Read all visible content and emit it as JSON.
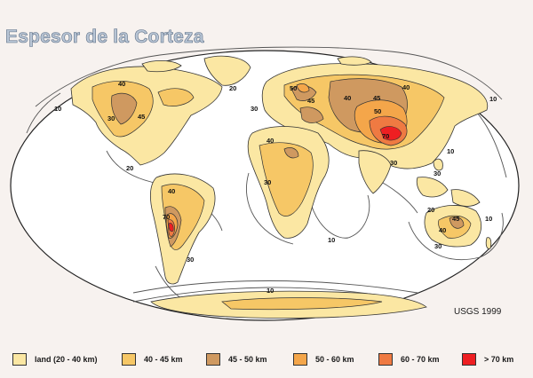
{
  "title": "Espesor de la Corteza",
  "credit": "USGS 1999",
  "legend": [
    {
      "label": "land (20 - 40 km)",
      "color": "#fbe7a3"
    },
    {
      "label": "40 - 45 km",
      "color": "#f6c766"
    },
    {
      "label": "45 - 50 km",
      "color": "#cf9960"
    },
    {
      "label": "50 - 60 km",
      "color": "#f4a64a"
    },
    {
      "label": "60 - 70 km",
      "color": "#ef7a42"
    },
    {
      "label": "> 70 km",
      "color": "#ee1f22"
    }
  ],
  "contour_labels": [
    "40",
    "30",
    "45",
    "10",
    "20",
    "30",
    "50",
    "45",
    "40",
    "45",
    "50",
    "70",
    "40",
    "30",
    "40",
    "30",
    "10",
    "30",
    "20",
    "40",
    "45",
    "10",
    "30",
    "10",
    "20",
    "70",
    "40",
    "30",
    "10",
    "10"
  ],
  "colors": {
    "ocean": "#ffffff",
    "land": "#fbe7a3",
    "l40": "#f6c766",
    "l45": "#cf9960",
    "l50": "#f4a64a",
    "l60": "#ef7a42",
    "l70": "#ee1f22",
    "contour": "#444444"
  }
}
